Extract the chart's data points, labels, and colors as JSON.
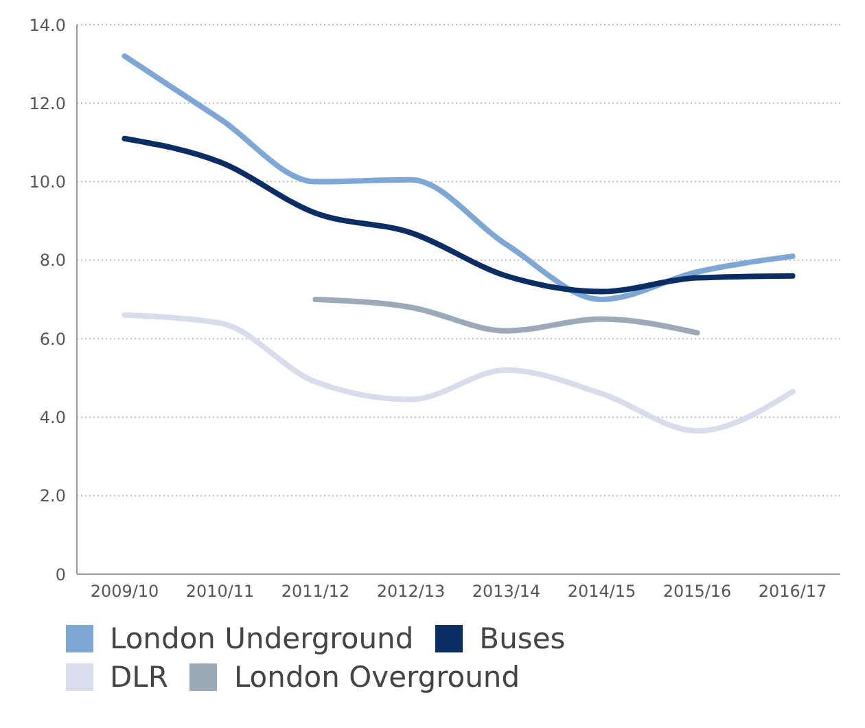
{
  "chart_data": {
    "type": "line",
    "categories": [
      "2009/10",
      "2010/11",
      "2011/12",
      "2012/13",
      "2013/14",
      "2014/15",
      "2015/16",
      "2016/17"
    ],
    "series": [
      {
        "name": "London Underground",
        "color": "#7fa7d6",
        "values": [
          13.2,
          11.6,
          10.0,
          10.05,
          8.4,
          7.0,
          7.7,
          8.1
        ]
      },
      {
        "name": "Buses",
        "color": "#0a2d63",
        "values": [
          11.1,
          10.5,
          9.2,
          8.7,
          7.6,
          7.2,
          7.55,
          7.6
        ]
      },
      {
        "name": "DLR",
        "color": "#d9dceb",
        "values": [
          6.6,
          6.4,
          4.9,
          4.45,
          5.2,
          4.6,
          3.65,
          4.65
        ]
      },
      {
        "name": "London Overground",
        "color": "#9ba9b8",
        "values": [
          null,
          null,
          7.0,
          6.8,
          6.2,
          6.5,
          6.15,
          null
        ]
      }
    ],
    "ylim": [
      0,
      14
    ],
    "yticks": [
      {
        "value": 0,
        "label": "0"
      },
      {
        "value": 2,
        "label": "2.0"
      },
      {
        "value": 4,
        "label": "4.0"
      },
      {
        "value": 6,
        "label": "6.0"
      },
      {
        "value": 8,
        "label": "8.0"
      },
      {
        "value": 10,
        "label": "10.0"
      },
      {
        "value": 12,
        "label": "12.0"
      },
      {
        "value": 14,
        "label": "14.0"
      }
    ],
    "grid": "y",
    "legend": "bottom",
    "marker": "none",
    "line_style": "solid"
  }
}
